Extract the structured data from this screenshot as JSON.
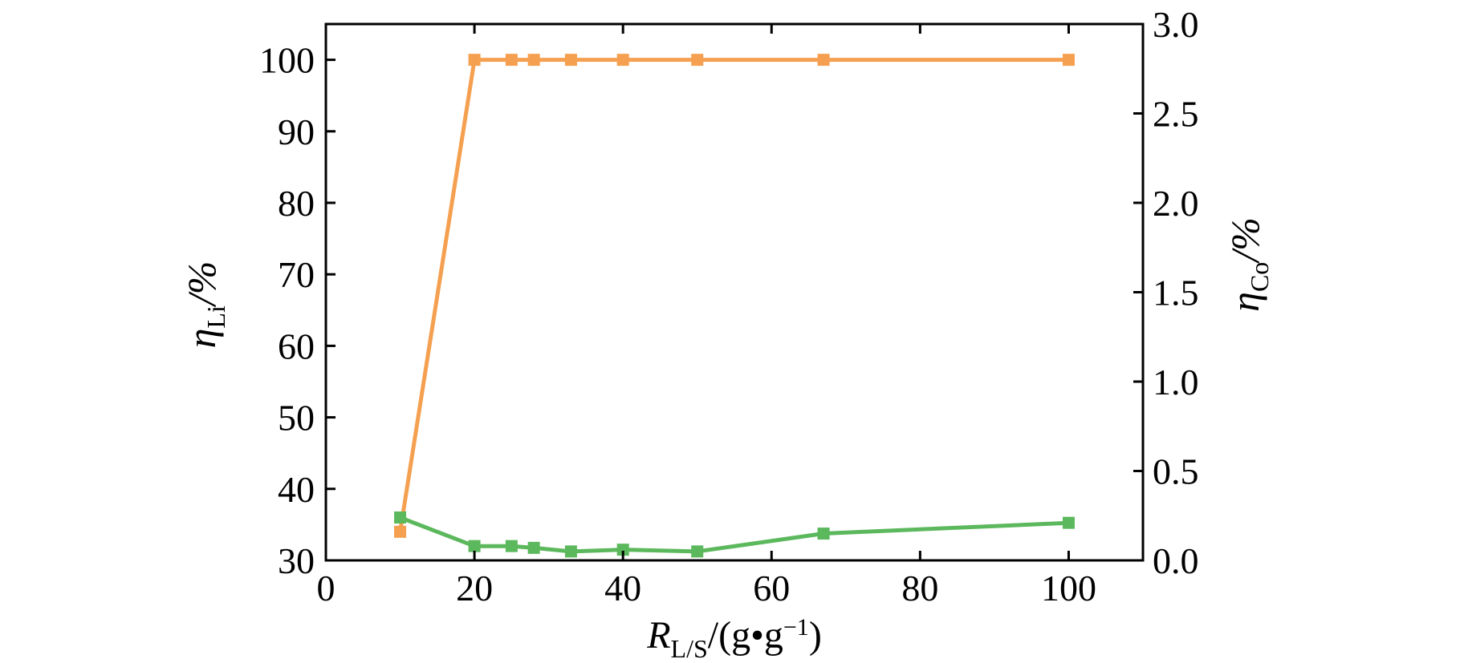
{
  "chart_data": {
    "type": "line",
    "xlabel": {
      "main": "R",
      "sub": "L/S",
      "tail": "/(g•g",
      "sup": "−1",
      "close": ")"
    },
    "ylabel_left": {
      "main": "η",
      "sub": "Li",
      "tail": "/%"
    },
    "ylabel_right": {
      "main": "η",
      "sub": "Co",
      "tail": "/%"
    },
    "xlim": [
      0,
      110
    ],
    "ylim_left": [
      30,
      105
    ],
    "ylim_right": [
      0,
      3.0
    ],
    "x_ticks": [
      "0",
      "20",
      "40",
      "60",
      "80",
      "100"
    ],
    "y_left_ticks": [
      "30",
      "40",
      "50",
      "60",
      "70",
      "80",
      "90",
      "100"
    ],
    "y_right_ticks": [
      "0.0",
      "0.5",
      "1.0",
      "1.5",
      "2.0",
      "2.5",
      "3.0"
    ],
    "grid": false,
    "series": [
      {
        "axis": "left",
        "color": "#f5a050",
        "x": [
          10,
          20,
          25,
          28,
          33,
          40,
          50,
          67,
          100
        ],
        "y": [
          34,
          100,
          100,
          100,
          100,
          100,
          100,
          100,
          100
        ]
      },
      {
        "axis": "right",
        "color": "#5cb85c",
        "x": [
          10,
          20,
          25,
          28,
          33,
          40,
          50,
          67,
          100
        ],
        "y": [
          0.24,
          0.08,
          0.08,
          0.07,
          0.05,
          0.06,
          0.05,
          0.15,
          0.21
        ]
      }
    ]
  }
}
